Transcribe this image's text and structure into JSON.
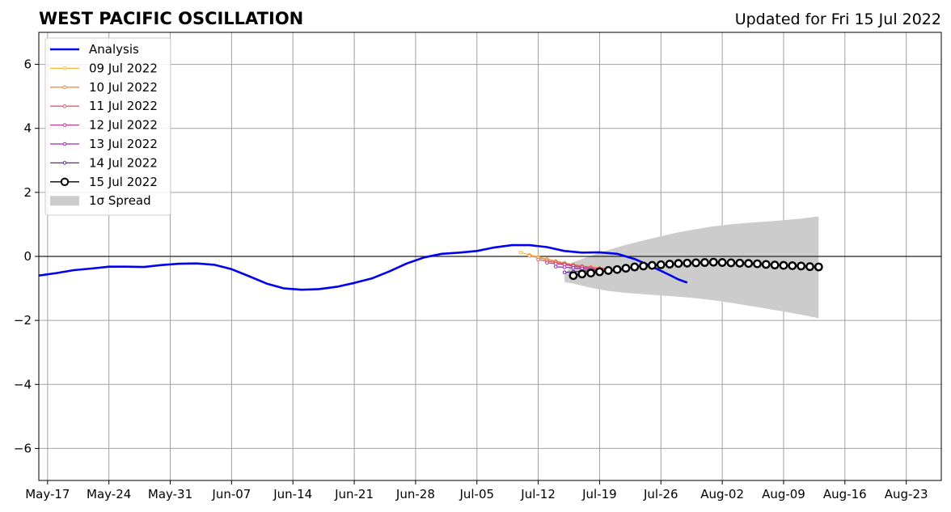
{
  "chart_data": {
    "type": "line",
    "title": "WEST PACIFIC OSCILLATION",
    "subtitle": "Updated for Fri 15 Jul 2022",
    "xlabel": "",
    "ylabel": "",
    "x_range": [
      "2022-05-16",
      "2022-08-27"
    ],
    "ylim": [
      -7,
      7
    ],
    "grid": true,
    "legend_placement": "top-left",
    "x_ticks": [
      "May-17",
      "May-24",
      "May-31",
      "Jun-07",
      "Jun-14",
      "Jun-21",
      "Jun-28",
      "Jul-05",
      "Jul-12",
      "Jul-19",
      "Jul-26",
      "Aug-02",
      "Aug-09",
      "Aug-16",
      "Aug-23"
    ],
    "x_tick_dates": [
      "2022-05-17",
      "2022-05-24",
      "2022-05-31",
      "2022-06-07",
      "2022-06-14",
      "2022-06-21",
      "2022-06-28",
      "2022-07-05",
      "2022-07-12",
      "2022-07-19",
      "2022-07-26",
      "2022-08-02",
      "2022-08-09",
      "2022-08-16",
      "2022-08-23"
    ],
    "y_ticks": [
      -6,
      -4,
      -2,
      0,
      2,
      4,
      6
    ],
    "y_tick_labels": [
      "−6",
      "−4",
      "−2",
      "0",
      "2",
      "4",
      "6"
    ],
    "analysis": {
      "name": "Analysis",
      "color": "#0000ee",
      "points": [
        [
          "2022-05-16",
          -0.6
        ],
        [
          "2022-05-18",
          -0.52
        ],
        [
          "2022-05-20",
          -0.43
        ],
        [
          "2022-05-22",
          -0.38
        ],
        [
          "2022-05-24",
          -0.32
        ],
        [
          "2022-05-26",
          -0.32
        ],
        [
          "2022-05-28",
          -0.33
        ],
        [
          "2022-05-30",
          -0.27
        ],
        [
          "2022-06-01",
          -0.23
        ],
        [
          "2022-06-03",
          -0.22
        ],
        [
          "2022-06-05",
          -0.26
        ],
        [
          "2022-06-07",
          -0.4
        ],
        [
          "2022-06-09",
          -0.62
        ],
        [
          "2022-06-11",
          -0.85
        ],
        [
          "2022-06-13",
          -1.0
        ],
        [
          "2022-06-15",
          -1.04
        ],
        [
          "2022-06-17",
          -1.02
        ],
        [
          "2022-06-19",
          -0.95
        ],
        [
          "2022-06-21",
          -0.83
        ],
        [
          "2022-06-23",
          -0.69
        ],
        [
          "2022-06-25",
          -0.47
        ],
        [
          "2022-06-27",
          -0.22
        ],
        [
          "2022-06-29",
          -0.03
        ],
        [
          "2022-07-01",
          0.08
        ],
        [
          "2022-07-03",
          0.12
        ],
        [
          "2022-07-05",
          0.17
        ],
        [
          "2022-07-07",
          0.28
        ],
        [
          "2022-07-09",
          0.35
        ],
        [
          "2022-07-11",
          0.35
        ],
        [
          "2022-07-13",
          0.29
        ],
        [
          "2022-07-15",
          0.17
        ],
        [
          "2022-07-17",
          0.12
        ],
        [
          "2022-07-19",
          0.13
        ],
        [
          "2022-07-21",
          0.08
        ],
        [
          "2022-07-23",
          -0.08
        ],
        [
          "2022-07-25",
          -0.32
        ],
        [
          "2022-07-27",
          -0.58
        ],
        [
          "2022-07-28",
          -0.72
        ],
        [
          "2022-07-29",
          -0.82
        ]
      ]
    },
    "forecasts": [
      {
        "name": "09 Jul 2022",
        "color": "#f5b83d",
        "points": [
          [
            "2022-07-10",
            0.12
          ],
          [
            "2022-07-11",
            0.05
          ],
          [
            "2022-07-12",
            -0.02
          ],
          [
            "2022-07-13",
            -0.08
          ],
          [
            "2022-07-14",
            -0.14
          ],
          [
            "2022-07-15",
            -0.2
          ],
          [
            "2022-07-16",
            -0.25
          ],
          [
            "2022-07-17",
            -0.3
          ],
          [
            "2022-07-18",
            -0.34
          ],
          [
            "2022-07-19",
            -0.37
          ],
          [
            "2022-07-20",
            -0.39
          ]
        ]
      },
      {
        "name": "10 Jul 2022",
        "color": "#f08a4b",
        "points": [
          [
            "2022-07-11",
            0.02
          ],
          [
            "2022-07-12",
            -0.04
          ],
          [
            "2022-07-13",
            -0.1
          ],
          [
            "2022-07-14",
            -0.16
          ],
          [
            "2022-07-15",
            -0.21
          ],
          [
            "2022-07-16",
            -0.26
          ],
          [
            "2022-07-17",
            -0.3
          ],
          [
            "2022-07-18",
            -0.33
          ],
          [
            "2022-07-19",
            -0.36
          ],
          [
            "2022-07-20",
            -0.38
          ]
        ]
      },
      {
        "name": "11 Jul 2022",
        "color": "#e15e6a",
        "points": [
          [
            "2022-07-12",
            -0.1
          ],
          [
            "2022-07-13",
            -0.15
          ],
          [
            "2022-07-14",
            -0.19
          ],
          [
            "2022-07-15",
            -0.23
          ],
          [
            "2022-07-16",
            -0.27
          ],
          [
            "2022-07-17",
            -0.31
          ],
          [
            "2022-07-18",
            -0.35
          ],
          [
            "2022-07-19",
            -0.38
          ],
          [
            "2022-07-20",
            -0.4
          ],
          [
            "2022-07-21",
            -0.41
          ],
          [
            "2022-07-22",
            -0.4
          ]
        ]
      },
      {
        "name": "12 Jul 2022",
        "color": "#c23c8f",
        "points": [
          [
            "2022-07-13",
            -0.2
          ],
          [
            "2022-07-14",
            -0.23
          ],
          [
            "2022-07-15",
            -0.26
          ],
          [
            "2022-07-16",
            -0.3
          ],
          [
            "2022-07-17",
            -0.34
          ],
          [
            "2022-07-18",
            -0.38
          ],
          [
            "2022-07-19",
            -0.42
          ],
          [
            "2022-07-20",
            -0.44
          ],
          [
            "2022-07-21",
            -0.44
          ],
          [
            "2022-07-22",
            -0.42
          ]
        ]
      },
      {
        "name": "13 Jul 2022",
        "color": "#9a2fa8",
        "points": [
          [
            "2022-07-14",
            -0.32
          ],
          [
            "2022-07-15",
            -0.34
          ],
          [
            "2022-07-16",
            -0.36
          ],
          [
            "2022-07-17",
            -0.39
          ],
          [
            "2022-07-18",
            -0.42
          ],
          [
            "2022-07-19",
            -0.44
          ],
          [
            "2022-07-20",
            -0.45
          ],
          [
            "2022-07-21",
            -0.44
          ],
          [
            "2022-07-22",
            -0.42
          ]
        ]
      },
      {
        "name": "14 Jul 2022",
        "color": "#5b2aa0",
        "points": [
          [
            "2022-07-15",
            -0.5
          ],
          [
            "2022-07-16",
            -0.48
          ],
          [
            "2022-07-17",
            -0.46
          ],
          [
            "2022-07-18",
            -0.45
          ],
          [
            "2022-07-19",
            -0.45
          ],
          [
            "2022-07-20",
            -0.44
          ],
          [
            "2022-07-21",
            -0.43
          ],
          [
            "2022-07-22",
            -0.41
          ]
        ]
      }
    ],
    "current_forecast": {
      "name": "15 Jul 2022",
      "color": "#000000",
      "points": [
        [
          "2022-07-16",
          -0.6
        ],
        [
          "2022-07-17",
          -0.55
        ],
        [
          "2022-07-18",
          -0.52
        ],
        [
          "2022-07-19",
          -0.48
        ],
        [
          "2022-07-20",
          -0.44
        ],
        [
          "2022-07-21",
          -0.41
        ],
        [
          "2022-07-22",
          -0.37
        ],
        [
          "2022-07-23",
          -0.33
        ],
        [
          "2022-07-24",
          -0.3
        ],
        [
          "2022-07-25",
          -0.28
        ],
        [
          "2022-07-26",
          -0.26
        ],
        [
          "2022-07-27",
          -0.24
        ],
        [
          "2022-07-28",
          -0.22
        ],
        [
          "2022-07-29",
          -0.21
        ],
        [
          "2022-07-30",
          -0.2
        ],
        [
          "2022-07-31",
          -0.19
        ],
        [
          "2022-08-01",
          -0.18
        ],
        [
          "2022-08-02",
          -0.19
        ],
        [
          "2022-08-03",
          -0.2
        ],
        [
          "2022-08-04",
          -0.21
        ],
        [
          "2022-08-05",
          -0.22
        ],
        [
          "2022-08-06",
          -0.23
        ],
        [
          "2022-08-07",
          -0.25
        ],
        [
          "2022-08-08",
          -0.27
        ],
        [
          "2022-08-09",
          -0.28
        ],
        [
          "2022-08-10",
          -0.29
        ],
        [
          "2022-08-11",
          -0.3
        ],
        [
          "2022-08-12",
          -0.32
        ],
        [
          "2022-08-13",
          -0.33
        ]
      ]
    },
    "spread": {
      "name": "1σ Spread",
      "color": "#cccccc",
      "upper": [
        [
          "2022-07-15",
          -0.6
        ],
        [
          "2022-07-16",
          -0.18
        ],
        [
          "2022-07-18",
          0.02
        ],
        [
          "2022-07-20",
          0.2
        ],
        [
          "2022-07-22",
          0.36
        ],
        [
          "2022-07-24",
          0.5
        ],
        [
          "2022-07-26",
          0.63
        ],
        [
          "2022-07-28",
          0.75
        ],
        [
          "2022-07-30",
          0.85
        ],
        [
          "2022-08-01",
          0.94
        ],
        [
          "2022-08-03",
          1.0
        ],
        [
          "2022-08-05",
          1.05
        ],
        [
          "2022-08-07",
          1.09
        ],
        [
          "2022-08-09",
          1.13
        ],
        [
          "2022-08-11",
          1.18
        ],
        [
          "2022-08-13",
          1.25
        ]
      ],
      "lower": [
        [
          "2022-07-15",
          -0.8
        ],
        [
          "2022-07-16",
          -0.85
        ],
        [
          "2022-07-18",
          -0.98
        ],
        [
          "2022-07-20",
          -1.08
        ],
        [
          "2022-07-22",
          -1.14
        ],
        [
          "2022-07-24",
          -1.18
        ],
        [
          "2022-07-26",
          -1.22
        ],
        [
          "2022-07-28",
          -1.26
        ],
        [
          "2022-07-30",
          -1.31
        ],
        [
          "2022-08-01",
          -1.37
        ],
        [
          "2022-08-03",
          -1.45
        ],
        [
          "2022-08-05",
          -1.54
        ],
        [
          "2022-08-07",
          -1.63
        ],
        [
          "2022-08-09",
          -1.72
        ],
        [
          "2022-08-11",
          -1.82
        ],
        [
          "2022-08-13",
          -1.93
        ]
      ]
    }
  }
}
